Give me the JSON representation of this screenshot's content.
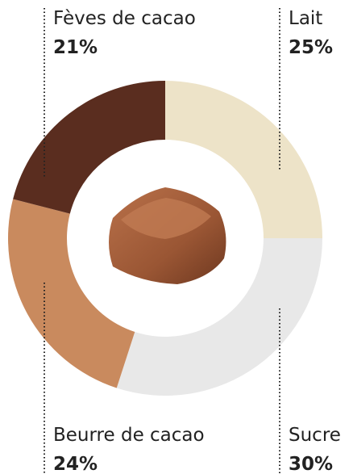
{
  "chart_data": {
    "type": "pie",
    "categories": [
      "Lait",
      "Sucre",
      "Beurre de cacao",
      "Fèves de cacao"
    ],
    "values": [
      25,
      30,
      24,
      21
    ],
    "value_labels": [
      "25%",
      "30%",
      "24%",
      "21%"
    ],
    "colors": [
      "#ede3c8",
      "#e8e8e8",
      "#c98a5e",
      "#5a2d1f"
    ],
    "donut": true
  }
}
